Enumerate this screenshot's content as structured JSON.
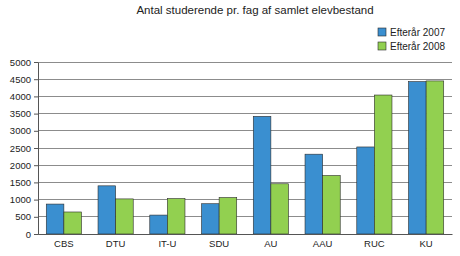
{
  "chart_data": {
    "type": "bar",
    "title": "Antal studerende pr. fag af samlet elevbestand",
    "categories": [
      "CBS",
      "DTU",
      "IT-U",
      "SDU",
      "AU",
      "AAU",
      "RUC",
      "KU"
    ],
    "series": [
      {
        "name": "Efterår 2007",
        "color": "#3a8fd0",
        "values": [
          870,
          1400,
          550,
          880,
          3420,
          2320,
          2530,
          4430
        ]
      },
      {
        "name": "Efterår 2008",
        "color": "#92d050",
        "values": [
          640,
          1020,
          1030,
          1060,
          1460,
          1700,
          4040,
          4450
        ]
      }
    ],
    "ylim": [
      0,
      5000
    ],
    "yticks": [
      0,
      500,
      1000,
      1500,
      2000,
      2500,
      3000,
      3500,
      4000,
      4500,
      5000
    ],
    "grid": true,
    "legend": "top-right"
  }
}
